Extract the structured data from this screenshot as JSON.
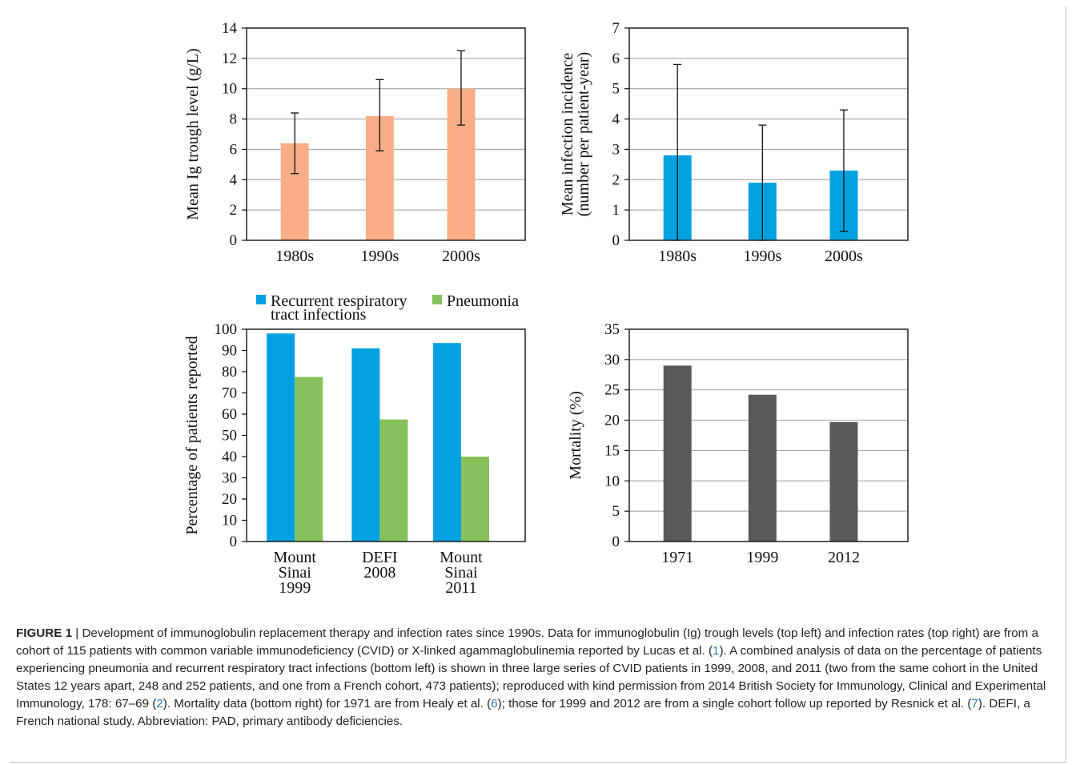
{
  "chart_data": [
    {
      "id": "top-left",
      "type": "bar",
      "categories": [
        "1980s",
        "1990s",
        "2000s"
      ],
      "values": [
        6.4,
        8.2,
        10.0
      ],
      "error_low": [
        4.4,
        5.9,
        7.6
      ],
      "error_high": [
        8.4,
        10.6,
        12.5
      ],
      "ylabel": [
        "Mean Ig trough level (g/L)"
      ],
      "ylim": [
        0,
        14
      ],
      "yticks": [
        "0",
        "2",
        "4",
        "6",
        "8",
        "10",
        "12",
        "14"
      ],
      "grid": true,
      "color": "#f7ae86"
    },
    {
      "id": "top-right",
      "type": "bar",
      "categories": [
        "1980s",
        "1990s",
        "2000s"
      ],
      "values": [
        2.8,
        1.9,
        2.3
      ],
      "error_low": [
        0,
        0,
        0.3
      ],
      "error_high": [
        5.8,
        3.8,
        4.3
      ],
      "ylabel": [
        "Mean infection incidence",
        "(number per patient-year)"
      ],
      "ylim": [
        0,
        7
      ],
      "yticks": [
        "0",
        "1",
        "2",
        "3",
        "4",
        "5",
        "6",
        "7"
      ],
      "grid": true,
      "color": "#00a1e0"
    },
    {
      "id": "bottom-left",
      "type": "bar",
      "categories": [
        [
          "Mount",
          "Sinai",
          "1999"
        ],
        [
          "DEFI",
          "2008"
        ],
        [
          "Mount",
          "Sinai",
          "2011"
        ]
      ],
      "series": [
        {
          "name": [
            "Recurrent respiratory",
            "tract infections"
          ],
          "values": [
            98,
            91,
            93.5
          ],
          "color": "#00a1e0"
        },
        {
          "name": [
            "Pneumonia"
          ],
          "values": [
            77.5,
            57.5,
            40
          ],
          "color": "#86c15b"
        }
      ],
      "ylabel": [
        "Percentage of patients reported"
      ],
      "ylim": [
        0,
        100
      ],
      "yticks": [
        "0",
        "10",
        "20",
        "30",
        "40",
        "50",
        "60",
        "70",
        "80",
        "90",
        "100"
      ],
      "grid": false,
      "legend": "top"
    },
    {
      "id": "bottom-right",
      "type": "bar",
      "categories": [
        "1971",
        "1999",
        "2012"
      ],
      "values": [
        29,
        24.2,
        19.7
      ],
      "ylabel": [
        "Mortality (%)"
      ],
      "ylim": [
        0,
        35
      ],
      "yticks": [
        "0",
        "5",
        "10",
        "15",
        "20",
        "25",
        "30",
        "35"
      ],
      "grid": true,
      "color": "#595959"
    }
  ],
  "caption": {
    "label": "FIGURE 1",
    "sep": " | ",
    "segments": [
      {
        "t": "Development of immunoglobulin replacement therapy and infection rates since 1990s. Data for immunoglobulin (Ig) trough levels (top left) and infection rates (top right) are from a cohort of 115 patients with common variable immunodeficiency (CVID) or X-linked agammaglobulinemia reported by Lucas et al. ("
      },
      {
        "t": "1",
        "ref": true
      },
      {
        "t": "). A combined analysis of data on the percentage of patients experiencing pneumonia and recurrent respiratory tract infections (bottom left) is shown in three large series of CVID patients in 1999, 2008, and 2011 (two from the same cohort in the United States 12 years apart, 248 and 252 patients, and one from a French cohort, 473 patients); reproduced with kind permission from 2014 British Society for Immunology, Clinical and Experimental Immunology, 178: 67–69 ("
      },
      {
        "t": "2",
        "ref": true
      },
      {
        "t": "). Mortality data (bottom right) for 1971 are from Healy et al. ("
      },
      {
        "t": "6",
        "ref": true
      },
      {
        "t": "); those for 1999 and 2012 are from a single cohort follow up reported by Resnick et al. ("
      },
      {
        "t": "7",
        "ref": true
      },
      {
        "t": "). DEFI, a French national study. Abbreviation: PAD, primary antibody deficiencies."
      }
    ]
  }
}
